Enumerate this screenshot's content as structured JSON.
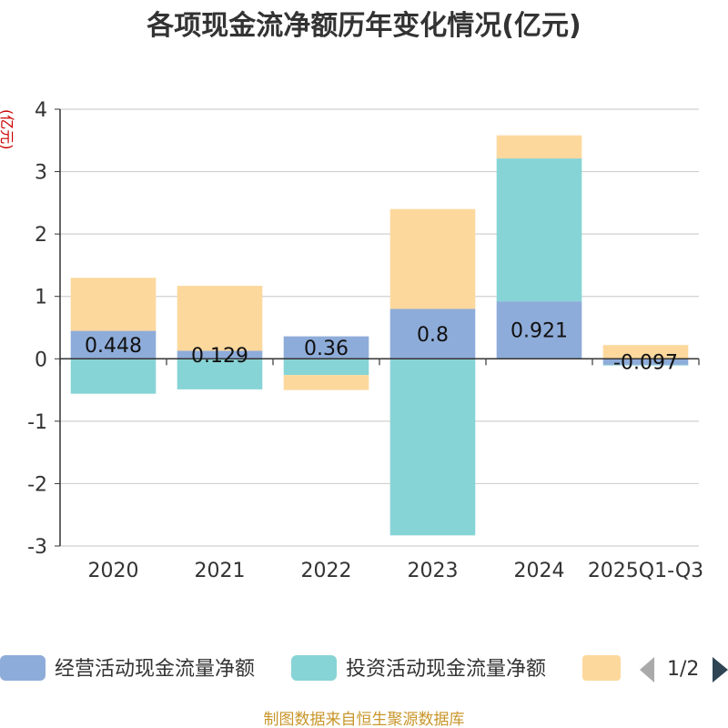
{
  "chart_data": {
    "type": "bar",
    "stacked": true,
    "title": "各项现金流净额历年变化情况(亿元)",
    "ylabel": "(亿元)",
    "xlabel": "",
    "ylim": [
      -3,
      4
    ],
    "yticks": [
      4,
      3,
      2,
      1,
      0,
      -1,
      -2,
      -3
    ],
    "ytick_labels": [
      "4",
      "3",
      "2",
      "1",
      "0",
      "-1",
      "-2",
      "-3"
    ],
    "categories": [
      "2020",
      "2021",
      "2022",
      "2023",
      "2024",
      "2025Q1-Q3"
    ],
    "series": [
      {
        "name": "经营活动现金流量净额",
        "color": "#8eacd9",
        "values": [
          0.448,
          0.129,
          0.36,
          0.8,
          0.921,
          -0.097
        ],
        "labels": [
          "0.448",
          "0.129",
          "0.36",
          "0.8",
          "0.921",
          "-0.097"
        ]
      },
      {
        "name": "投资活动现金流量净额",
        "color": "#87d4d6",
        "values": [
          -0.56,
          -0.49,
          -0.26,
          -2.83,
          2.29,
          -0.01
        ]
      },
      {
        "name": "",
        "color": "#fdd89d",
        "values": [
          0.85,
          1.04,
          -0.24,
          1.6,
          0.37,
          0.22
        ]
      }
    ],
    "grid": true,
    "legend_position": "bottom"
  },
  "legend": {
    "items": [
      "经营活动现金流量净额",
      "投资活动现金流量净额",
      ""
    ],
    "page_indicator": "1/2"
  },
  "source": "制图数据来自恒生聚源数据库",
  "colors": {
    "grid": "#d0d0d0",
    "axis": "#333333",
    "title": "#333333",
    "ylabel": "#cc0000",
    "source": "#c8962a",
    "pager_prev": "#aaaaaa",
    "pager_next": "#2f4554"
  }
}
